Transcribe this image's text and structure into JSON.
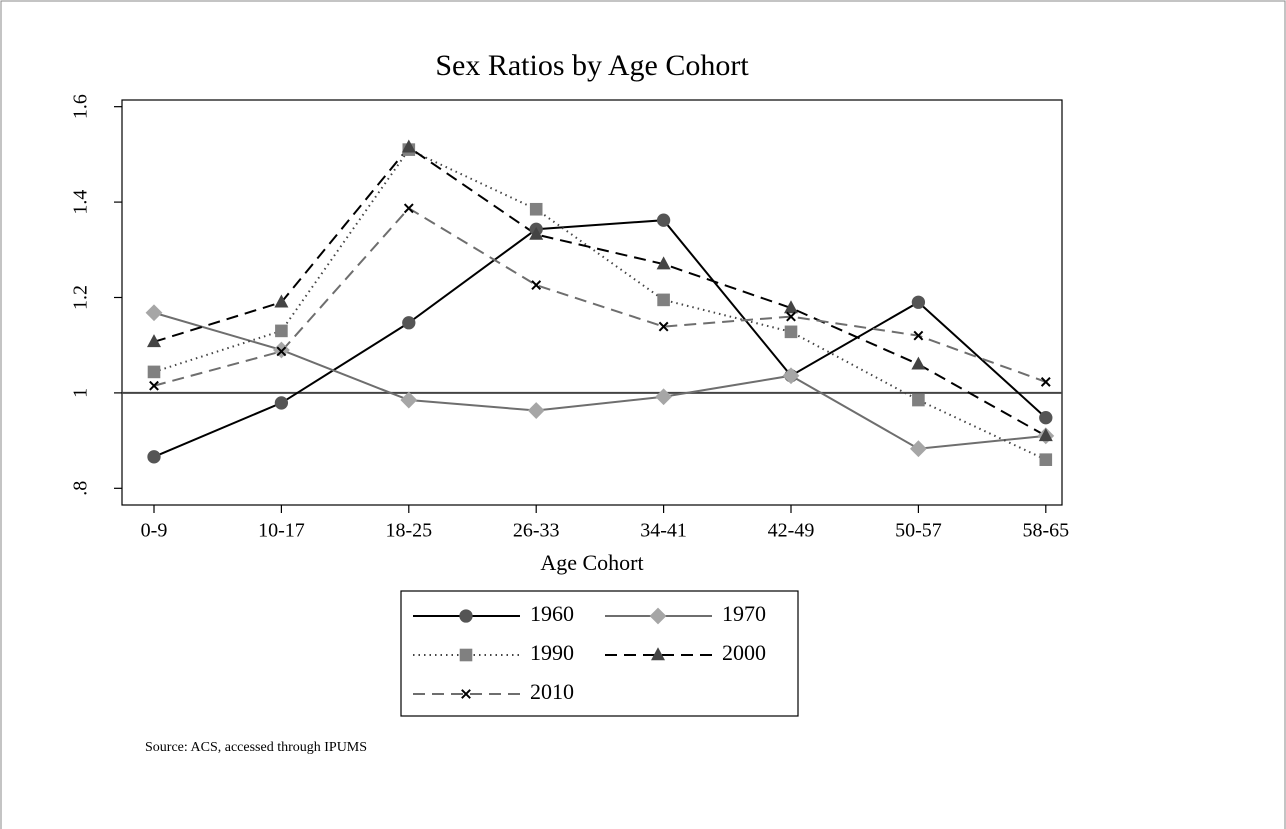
{
  "chart_data": {
    "type": "line",
    "title": "Sex Ratios by Age Cohort",
    "x_label": "Age Cohort",
    "note": "Source: ACS, accessed through IPUMS",
    "categories": [
      "0-9",
      "10-17",
      "18-25",
      "26-33",
      "34-41",
      "42-49",
      "50-57",
      "58-65"
    ],
    "ylim": [
      0.765,
      1.614
    ],
    "yticks": [
      {
        "value": 0.8,
        "label": ".8"
      },
      1,
      1.2,
      1.4,
      1.6
    ],
    "reference_line": 1,
    "series": [
      {
        "name": "1960",
        "color": "#000000",
        "marker_color": "#555555",
        "dash": "solid",
        "marker": "circle",
        "values": [
          0.866,
          0.979,
          1.147,
          1.343,
          1.362,
          1.036,
          1.19,
          0.948
        ]
      },
      {
        "name": "1970",
        "color": "#6e6e6e",
        "marker_color": "#a6a6a6",
        "dash": "solid",
        "marker": "diamond",
        "values": [
          1.168,
          1.09,
          0.985,
          0.963,
          0.992,
          1.036,
          0.883,
          0.91
        ]
      },
      {
        "name": "1990",
        "color": "#444444",
        "marker_color": "#808080",
        "dash": "dot",
        "marker": "square",
        "values": [
          1.044,
          1.13,
          1.51,
          1.385,
          1.195,
          1.128,
          0.985,
          0.86
        ]
      },
      {
        "name": "2000",
        "color": "#000000",
        "marker_color": "#444444",
        "dash": "dash",
        "marker": "triangle",
        "values": [
          1.107,
          1.19,
          1.515,
          1.332,
          1.27,
          1.178,
          1.06,
          0.91
        ]
      },
      {
        "name": "2010",
        "color": "#6e6e6e",
        "marker_color": "#000000",
        "dash": "dash",
        "marker": "x",
        "values": [
          1.015,
          1.087,
          1.387,
          1.226,
          1.139,
          1.16,
          1.12,
          1.023
        ]
      }
    ]
  }
}
